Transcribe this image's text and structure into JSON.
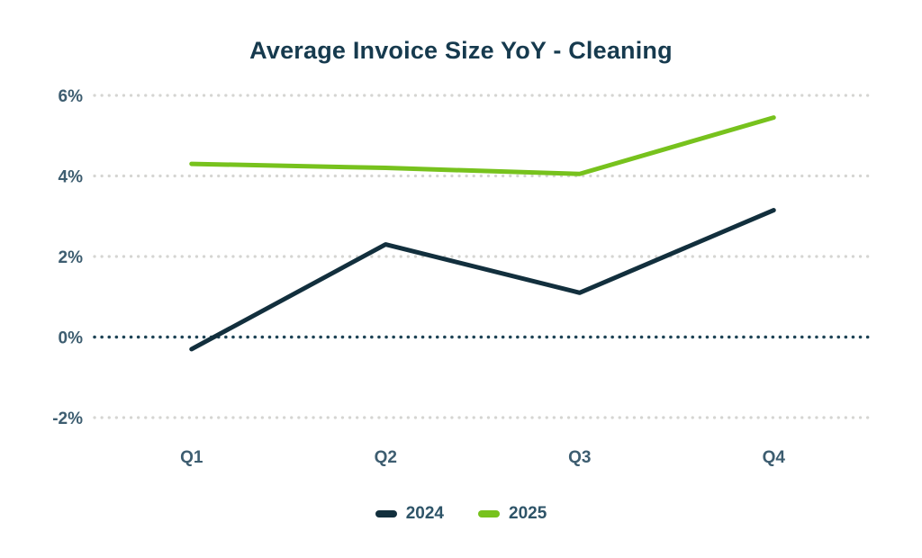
{
  "colors": {
    "background": "#ffffff",
    "title_text": "#163a4e",
    "axis_label": "#3d5d70",
    "legend_text": "#2e5468",
    "gridline": "#d5d5d2",
    "zero_line": "#1e4355"
  },
  "chart_data": {
    "type": "line",
    "title": "Average Invoice Size YoY - Cleaning",
    "xlabel": "",
    "ylabel": "",
    "categories": [
      "Q1",
      "Q2",
      "Q3",
      "Q4"
    ],
    "series": [
      {
        "name": "2024",
        "color": "#122f3d",
        "values": [
          -0.3,
          2.3,
          1.1,
          3.15
        ]
      },
      {
        "name": "2025",
        "color": "#77c21d",
        "values": [
          4.3,
          4.2,
          4.05,
          5.45
        ]
      }
    ],
    "ylim": [
      -2,
      6
    ],
    "ytick_values": [
      6,
      4,
      2,
      0,
      -2
    ],
    "ytick_labels": [
      "6%",
      "4%",
      "2%",
      "0%",
      "-2%"
    ],
    "grid": "horizontal-dotted",
    "zero_line_emphasized": true,
    "legend_position": "bottom"
  }
}
